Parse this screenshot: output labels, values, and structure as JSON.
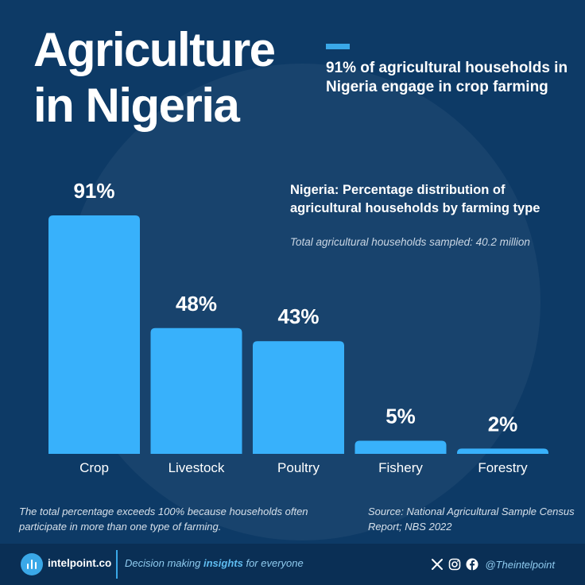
{
  "title": "Agriculture\nin Nigeria",
  "headline": "91% of agricultural households in Nigeria engage in crop farming",
  "chart_title": "Nigeria: Percentage distribution of agricultural households by farming type",
  "chart_subtitle": "Total agricultural households sampled: 40.2 million",
  "chart_data": {
    "type": "bar",
    "title": "Nigeria: Percentage distribution of agricultural households by farming type",
    "subtitle": "Total agricultural households sampled: 40.2 million",
    "categories": [
      "Crop",
      "Livestock",
      "Poultry",
      "Fishery",
      "Forestry"
    ],
    "values": [
      91,
      48,
      43,
      5,
      2
    ],
    "value_labels": [
      "91%",
      "48%",
      "43%",
      "5%",
      "2%"
    ],
    "unit": "%",
    "xlabel": "",
    "ylabel": "",
    "ylim": [
      0,
      100
    ],
    "grid": false,
    "legend": "none",
    "bar_color": "#38b1fb"
  },
  "note": "The total percentage exceeds 100% because households often participate in more than one type of farming.",
  "source": "Source: National Agricultural Sample Census Report; NBS 2022",
  "footer": {
    "brand": "intelpoint.co",
    "tagline_prefix": "Decision making ",
    "tagline_bold": "insights",
    "tagline_suffix": " for everyone",
    "handle": "@Theintelpoint",
    "social_icons": [
      "x-icon",
      "instagram-icon",
      "facebook-icon"
    ]
  },
  "colors": {
    "background": "#0d3a66",
    "footer": "#0a2f55",
    "accent": "#3aa8e8",
    "bar": "#38b1fb"
  }
}
